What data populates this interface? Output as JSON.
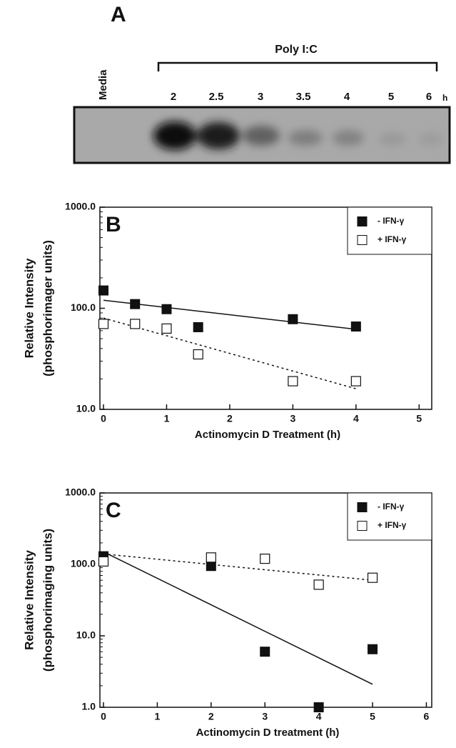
{
  "blot": {
    "panel": "A",
    "group": "Poly I:C",
    "control": "Media",
    "lanes": [
      "2",
      "2.5",
      "3",
      "3.5",
      "4",
      "5",
      "6"
    ],
    "unit": "h"
  },
  "chart_data": [
    {
      "type": "scatter",
      "panel": "B",
      "y_label": [
        "Relative Intensity",
        "(phosphorimager units)"
      ],
      "x_label": "Actinomycin D Treatment (h)",
      "log_y": true,
      "legend": "top-right",
      "xlim": [
        0,
        5.2
      ],
      "xticks": [
        0,
        1,
        2,
        3,
        4,
        5
      ],
      "ylim": [
        10,
        1000
      ],
      "yticks": [
        {
          "value": 10,
          "label": "10.0"
        },
        {
          "value": 100,
          "label": "100.0"
        },
        {
          "value": 1000,
          "label": "1000.0"
        }
      ],
      "series": [
        {
          "name": "- IFN-γ",
          "color": "#111111",
          "filled": true,
          "x": [
            0,
            0.5,
            1,
            1.5,
            3,
            4
          ],
          "values": [
            150,
            110,
            98,
            65,
            78,
            66
          ],
          "fit": {
            "x": [
              0,
              4
            ],
            "values": [
              120,
              62
            ],
            "dash": false
          }
        },
        {
          "name": "+ IFN-γ",
          "color": "#111111",
          "filled": false,
          "x": [
            0,
            0.5,
            1,
            1.5,
            3,
            4
          ],
          "values": [
            70,
            70,
            63,
            35,
            19,
            19
          ],
          "fit": {
            "x": [
              0,
              4
            ],
            "values": [
              80,
              16
            ],
            "dash": true
          }
        }
      ]
    },
    {
      "type": "scatter",
      "panel": "C",
      "y_label": [
        "Relative Intensity",
        "(phosphorimaging units)"
      ],
      "x_label": "Actinomycin D treatment (h)",
      "log_y": true,
      "legend": "top-right",
      "xlim": [
        0,
        6.1
      ],
      "xticks": [
        0,
        1,
        2,
        3,
        4,
        5,
        6
      ],
      "ylim": [
        1,
        1000
      ],
      "yticks": [
        {
          "value": 1,
          "label": "1.0"
        },
        {
          "value": 10,
          "label": "10.0"
        },
        {
          "value": 100,
          "label": "100.0"
        },
        {
          "value": 1000,
          "label": "1000.0"
        }
      ],
      "series": [
        {
          "name": "- IFN-γ",
          "color": "#111111",
          "filled": true,
          "x": [
            0,
            2,
            3,
            4,
            5
          ],
          "values": [
            130,
            95,
            6,
            1,
            6.5
          ],
          "fit": {
            "x": [
              0,
              5
            ],
            "values": [
              150,
              2.1
            ],
            "dash": false
          }
        },
        {
          "name": "+ IFN-γ",
          "color": "#111111",
          "filled": false,
          "x": [
            0,
            2,
            3,
            4,
            5
          ],
          "values": [
            110,
            125,
            120,
            52,
            65
          ],
          "fit": {
            "x": [
              0,
              5
            ],
            "values": [
              140,
              60
            ],
            "dash": true
          }
        }
      ]
    }
  ]
}
